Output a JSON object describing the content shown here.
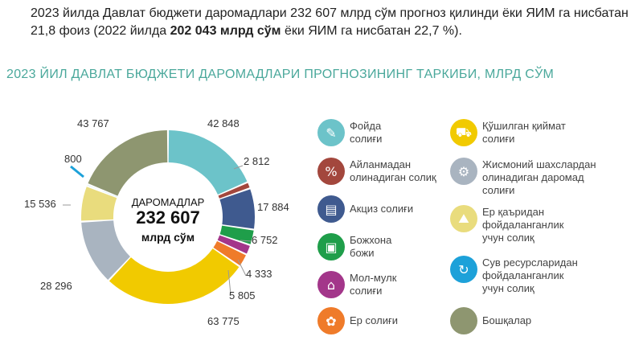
{
  "intro": {
    "part1": "2023 йилда Давлат бюджети даромадлари 232 607 млрд сўм прогноз қилинди ёки  ЯИМ га нисбатан 21,8 фоиз (2022 йилда ",
    "bold": "202 043 млрд сўм",
    "part2": " ёки ЯИМ га нисбатан 22,7 %)."
  },
  "title": "2023 ЙИЛ ДАВЛАТ БЮДЖЕТИ ДАРОМАДЛАРИ ПРОГНОЗИНИНГ ТАРКИБИ, МЛРД СЎМ",
  "chart_data": {
    "type": "donut",
    "center": {
      "line1": "ДАРОМАДЛАР",
      "line2": "232 607",
      "line3": "млрд сўм"
    },
    "slices": [
      {
        "label": "Фойда солиғи",
        "value": 42848,
        "display": "42 848",
        "color": "#6cc3c9"
      },
      {
        "label": "Айланмадан олинадиган солиқ",
        "value": 2812,
        "display": "2 812",
        "color": "#a3473d"
      },
      {
        "label": "Акциз солиғи",
        "value": 17884,
        "display": "17 884",
        "color": "#3f5a8f"
      },
      {
        "label": "Божхона божи",
        "value": 6752,
        "display": "6 752",
        "color": "#1f9e4a"
      },
      {
        "label": "Мол-мулк солиғи",
        "value": 4333,
        "display": "4 333",
        "color": "#a3368a"
      },
      {
        "label": "Ер солиғи",
        "value": 5805,
        "display": "5 805",
        "color": "#ef7b2a"
      },
      {
        "label": "Қўшилган қиймат солиғи",
        "value": 63775,
        "display": "63 775",
        "color": "#f1ca00"
      },
      {
        "label": "Жисмоний шахслардан олинадиган даромад солиғи",
        "value": 28296,
        "display": "28 296",
        "color": "#a9b4c0"
      },
      {
        "label": "Ер қаъридан фойдаланганлик учун солиқ",
        "value": 15536,
        "display": "15 536",
        "color": "#e9dc7d"
      },
      {
        "label": "Сув ресурсларидан фойдаланганлик учун солиқ",
        "value": 800,
        "display": "800",
        "color": "#1da1d9"
      },
      {
        "label": "Бошқалар",
        "value": 43767,
        "display": "43 767",
        "color": "#8e9670"
      }
    ]
  },
  "legend": [
    {
      "text": "Фойда\nсолиғи",
      "icon": "profit-tax-icon",
      "glyph": "✎",
      "color": "#6cc3c9"
    },
    {
      "text": "Айланмадан\nолинадиган солиқ",
      "icon": "turnover-tax-icon",
      "glyph": "%",
      "color": "#a3473d"
    },
    {
      "text": "Акциз солиғи",
      "icon": "excise-tax-icon",
      "glyph": "▤",
      "color": "#3f5a8f"
    },
    {
      "text": "Божхона\nбожи",
      "icon": "customs-duty-icon",
      "glyph": "▣",
      "color": "#1f9e4a"
    },
    {
      "text": "Мол-мулк\nсолиғи",
      "icon": "property-tax-icon",
      "glyph": "⌂",
      "color": "#a3368a"
    },
    {
      "text": "Ер солиғи",
      "icon": "land-tax-icon",
      "glyph": "✿",
      "color": "#ef7b2a"
    },
    {
      "text": "Қўшилган қиймат\nсолиғи",
      "icon": "vat-icon",
      "glyph": "⛟",
      "color": "#f1ca00"
    },
    {
      "text": "Жисмоний шахслардан\nолинадиган даромад\nсолиғи",
      "icon": "personal-income-tax-icon",
      "glyph": "⚙",
      "color": "#a9b4c0"
    },
    {
      "text": "Ер қаъридан\nфойдаланганлик\nучун солиқ",
      "icon": "subsoil-tax-icon",
      "glyph": "⛰",
      "color": "#e9dc7d"
    },
    {
      "text": "Сув ресурсларидан\nфойдаланганлик\nучун солиқ",
      "icon": "water-tax-icon",
      "glyph": "↻",
      "color": "#1da1d9"
    },
    {
      "text": "Бошқалар",
      "icon": "others-icon",
      "glyph": "",
      "color": "#8e9670"
    }
  ]
}
